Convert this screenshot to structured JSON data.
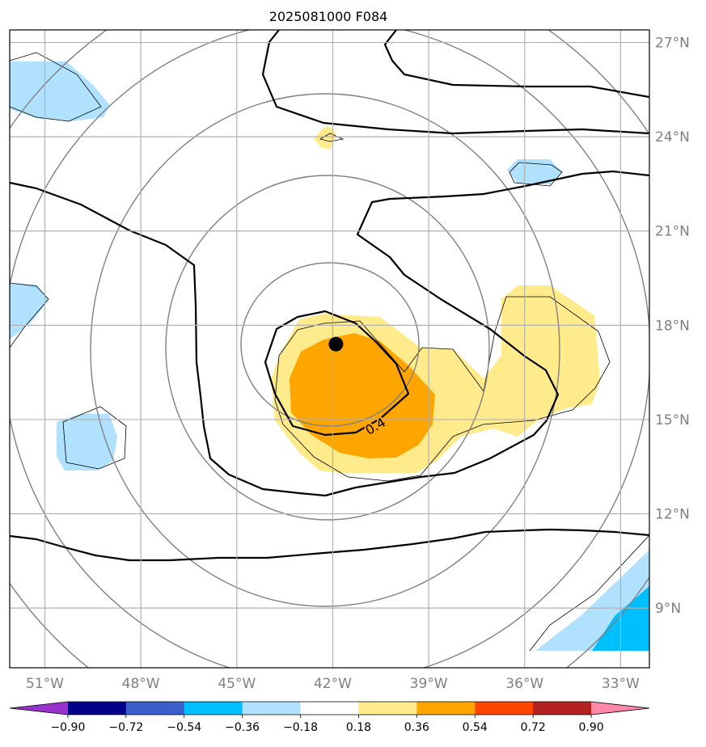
{
  "title": "2025081000 F084",
  "map": {
    "lon_range": [
      -52.1,
      -32.1
    ],
    "lat_range": [
      7.1,
      27.4
    ],
    "lon_ticks": [
      -51,
      -48,
      -45,
      -42,
      -39,
      -36,
      -33
    ],
    "lat_ticks": [
      9,
      12,
      15,
      18,
      21,
      24,
      27
    ],
    "lon_tick_labels": [
      "51°W",
      "48°W",
      "45°W",
      "42°W",
      "39°W",
      "36°W",
      "33°W"
    ],
    "lat_tick_labels": [
      "9°N",
      "12°N",
      "15°N",
      "18°N",
      "21°N",
      "24°N",
      "27°N"
    ],
    "grid": true,
    "storm_center": {
      "lon": -41.9,
      "lat": 17.4
    },
    "contour_label": "0.4"
  },
  "colorbar": {
    "colors": [
      "#9932cc",
      "#00008b",
      "#3a5fcd",
      "#00bfff",
      "#b0e2ff",
      "#ffffff",
      "#ffeb8b",
      "#ffa500",
      "#ff4500",
      "#b22222",
      "#ff88aa"
    ],
    "tick_labels": [
      "−0.90",
      "−0.72",
      "−0.54",
      "−0.36",
      "−0.18",
      "0.18",
      "0.36",
      "0.54",
      "0.72",
      "0.90"
    ],
    "extend": "both"
  },
  "colors": {
    "grid": "#b0b0b0",
    "gray_contour": "#808080",
    "black_contour": "#000000",
    "tick_label": "#808080"
  }
}
